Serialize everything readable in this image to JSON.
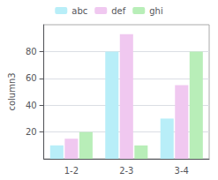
{
  "chart_data": {
    "type": "bar",
    "categories": [
      "1-2",
      "2-3",
      "3-4"
    ],
    "series": [
      {
        "name": "abc",
        "color": "#b8eef8",
        "values": [
          10,
          80,
          30
        ]
      },
      {
        "name": "def",
        "color": "#f0c8f0",
        "values": [
          15,
          93,
          55
        ]
      },
      {
        "name": "ghi",
        "color": "#b8eeb8",
        "values": [
          20,
          10,
          80
        ]
      }
    ],
    "ylabel": "column3",
    "ylim": [
      0,
      100
    ],
    "yticks": [
      20,
      40,
      60,
      80
    ],
    "grid": true,
    "legend": "top"
  }
}
